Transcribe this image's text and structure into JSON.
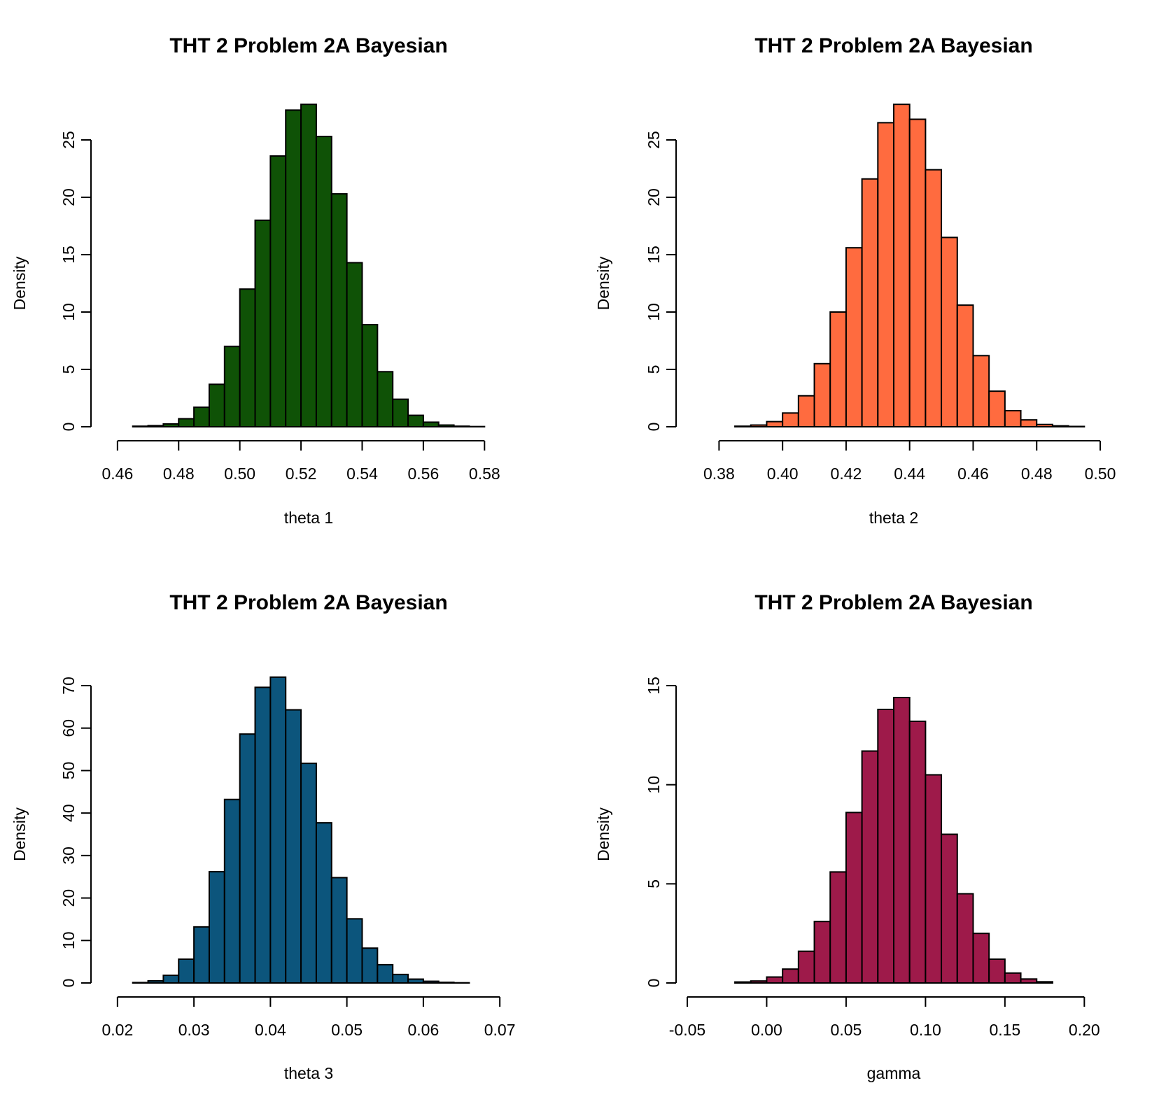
{
  "chart_data": [
    {
      "type": "bar",
      "title": "THT 2 Problem 2A Bayesian",
      "xlabel": "theta 1",
      "ylabel": "Density",
      "color": "#0f5206",
      "xlim": [
        0.455,
        0.59
      ],
      "ylim": [
        0,
        28
      ],
      "xticks": [
        "0.46",
        "0.48",
        "0.50",
        "0.52",
        "0.54",
        "0.56",
        "0.58"
      ],
      "yticks": [
        "0",
        "5",
        "10",
        "15",
        "20",
        "25"
      ],
      "bin_start": 0.465,
      "bin_width": 0.005,
      "values": [
        0.05,
        0.1,
        0.25,
        0.7,
        1.7,
        3.7,
        7.0,
        12.0,
        18.0,
        23.6,
        27.6,
        28.1,
        25.3,
        20.3,
        14.3,
        8.9,
        4.8,
        2.4,
        1.0,
        0.4,
        0.15,
        0.05,
        0.02
      ]
    },
    {
      "type": "bar",
      "title": "THT 2 Problem 2A Bayesian",
      "xlabel": "theta 2",
      "ylabel": "Density",
      "color": "#ff6b3f",
      "xlim": [
        0.37,
        0.5
      ],
      "ylim": [
        0,
        28
      ],
      "xticks": [
        "0.38",
        "0.40",
        "0.42",
        "0.44",
        "0.46",
        "0.48",
        "0.50"
      ],
      "yticks": [
        "0",
        "5",
        "10",
        "15",
        "20",
        "25"
      ],
      "bin_start": 0.385,
      "bin_width": 0.005,
      "values": [
        0.05,
        0.15,
        0.45,
        1.2,
        2.7,
        5.5,
        10.0,
        15.6,
        21.6,
        26.5,
        28.1,
        26.8,
        22.4,
        16.5,
        10.6,
        6.2,
        3.1,
        1.4,
        0.6,
        0.2,
        0.08,
        0.03
      ]
    },
    {
      "type": "bar",
      "title": "THT 2 Problem 2A Bayesian",
      "xlabel": "theta 3",
      "ylabel": "Density",
      "color": "#0c557c",
      "xlim": [
        0.018,
        0.072
      ],
      "ylim": [
        0,
        70
      ],
      "xticks": [
        "0.02",
        "0.03",
        "0.04",
        "0.05",
        "0.06",
        "0.07"
      ],
      "yticks": [
        "0",
        "10",
        "20",
        "30",
        "40",
        "50",
        "60",
        "70"
      ],
      "bin_start": 0.022,
      "bin_width": 0.002,
      "values": [
        0.1,
        0.5,
        1.8,
        5.6,
        13.2,
        26.2,
        43.2,
        58.6,
        69.6,
        72.0,
        64.3,
        51.7,
        37.7,
        24.8,
        15.1,
        8.2,
        4.3,
        2.0,
        0.9,
        0.4,
        0.15,
        0.05
      ]
    },
    {
      "type": "bar",
      "title": "THT 2 Problem 2A Bayesian",
      "xlabel": "gamma",
      "ylabel": "Density",
      "color": "#9e1a4a",
      "xlim": [
        -0.05,
        0.21
      ],
      "ylim": [
        0,
        15
      ],
      "xticks": [
        "-0.05",
        "0.00",
        "0.05",
        "0.10",
        "0.15",
        "0.20"
      ],
      "yticks": [
        "0",
        "5",
        "10",
        "15"
      ],
      "bin_start": -0.02,
      "bin_width": 0.01,
      "values": [
        0.05,
        0.1,
        0.3,
        0.7,
        1.6,
        3.1,
        5.6,
        8.6,
        11.7,
        13.8,
        14.4,
        13.2,
        10.5,
        7.5,
        4.5,
        2.5,
        1.2,
        0.5,
        0.2,
        0.06
      ]
    }
  ]
}
